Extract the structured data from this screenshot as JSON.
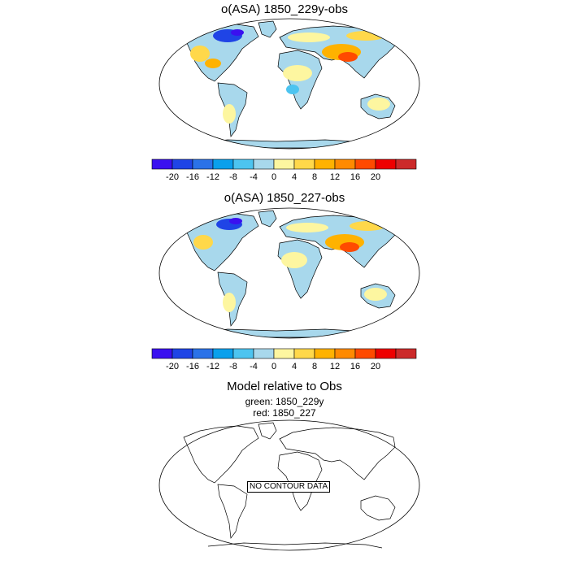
{
  "panels": [
    {
      "title": "o(ASA) 1850_229y-obs"
    },
    {
      "title": "o(ASA) 1850_227-obs"
    },
    {
      "title": "Model relative to Obs",
      "subtitle_lines": [
        "green: 1850_229y",
        "red: 1850_227"
      ],
      "no_data_label": "NO CONTOUR DATA"
    }
  ],
  "colorbar": {
    "colors": [
      "#3a10f0",
      "#1f44e6",
      "#2b72e8",
      "#0aa0ec",
      "#4cc4f0",
      "#a8d8ec",
      "#fdf6a0",
      "#ffd84a",
      "#ffb200",
      "#ff8a00",
      "#ff4a00",
      "#ee0000",
      "#cc2a2a"
    ],
    "labels": [
      "-20",
      "-16",
      "-12",
      "-8",
      "-4",
      "0",
      "4",
      "8",
      "12",
      "16",
      "20"
    ]
  }
}
